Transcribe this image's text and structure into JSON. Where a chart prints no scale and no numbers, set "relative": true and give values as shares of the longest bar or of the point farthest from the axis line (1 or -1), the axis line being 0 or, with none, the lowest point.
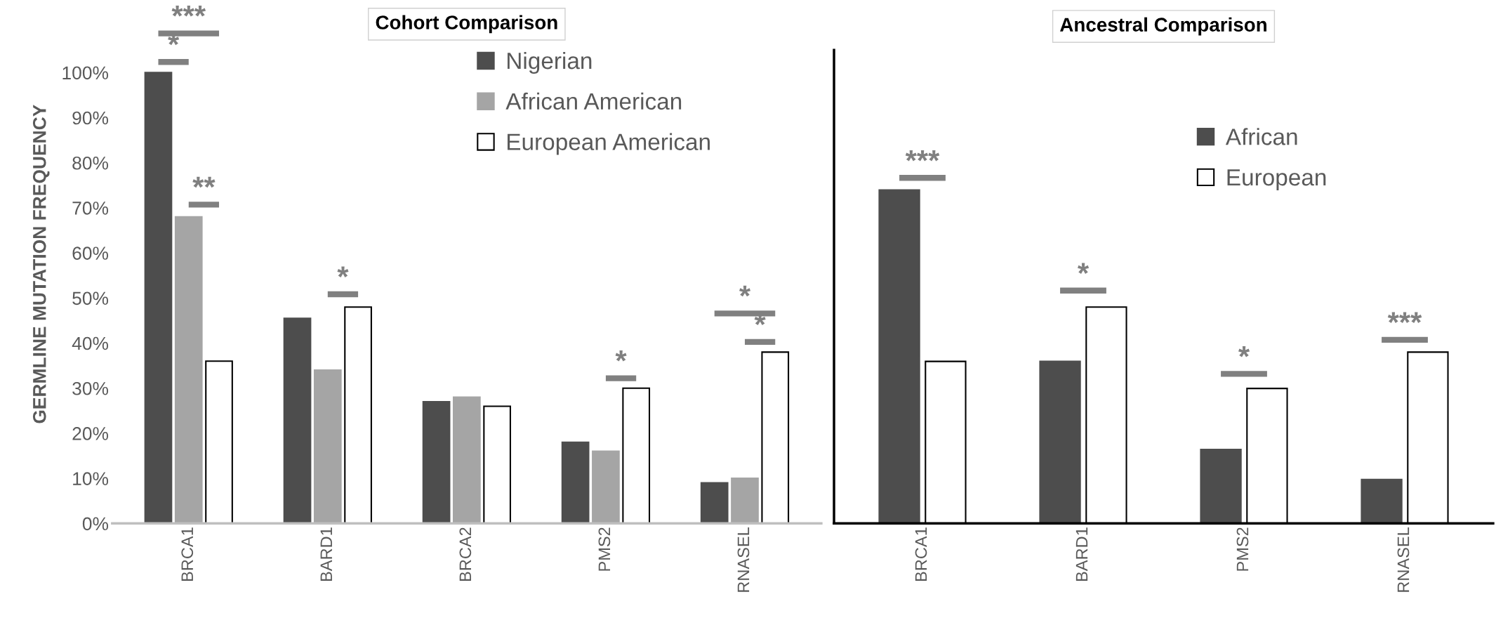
{
  "chart_data": [
    {
      "type": "bar",
      "title": "Cohort Comparison",
      "ylabel": "GERMLINE MUTATION FREQUENCY",
      "categories": [
        "BRCA1",
        "BARD1",
        "BRCA2",
        "PMS2",
        "RNASEL"
      ],
      "series": [
        {
          "name": "Nigerian",
          "color": "#4d4d4d",
          "values": [
            100,
            45.5,
            27,
            18,
            9
          ]
        },
        {
          "name": "African American",
          "color": "#a5a5a5",
          "values": [
            68,
            34,
            28,
            16,
            10
          ]
        },
        {
          "name": "European American",
          "color": "#ffffff",
          "values": [
            36,
            48,
            26,
            30,
            38
          ]
        }
      ],
      "ylim": [
        0,
        115
      ],
      "yticks": [
        {
          "value": 0,
          "label": "0%"
        },
        {
          "value": 10,
          "label": "10%"
        },
        {
          "value": 20,
          "label": "20%"
        },
        {
          "value": 30,
          "label": "30%"
        },
        {
          "value": 40,
          "label": "40%"
        },
        {
          "value": 50,
          "label": "50%"
        },
        {
          "value": 60,
          "label": "60%"
        },
        {
          "value": 70,
          "label": "70%"
        },
        {
          "value": 80,
          "label": "80%"
        },
        {
          "value": 90,
          "label": "90%"
        },
        {
          "value": 100,
          "label": "100%"
        }
      ],
      "annotations": [
        "***",
        "*",
        "**",
        "*",
        "*",
        "*",
        "*"
      ],
      "grid": false,
      "legend": "top"
    },
    {
      "type": "bar",
      "title": "Ancestral Comparison",
      "categories": [
        "BRCA1",
        "BARD1",
        "PMS2",
        "RNASEL"
      ],
      "series": [
        {
          "name": "African",
          "color": "#4d4d4d",
          "values": [
            1,
            0.486,
            0.222,
            0.132
          ]
        },
        {
          "name": "European",
          "color": "#ffffff",
          "values": [
            0.486,
            0.649,
            0.405,
            0.514
          ]
        }
      ],
      "relative": true,
      "tick_labels": "x",
      "annotations": [
        "***",
        "*",
        "*",
        "***"
      ],
      "grid": false,
      "legend": "top right"
    }
  ]
}
